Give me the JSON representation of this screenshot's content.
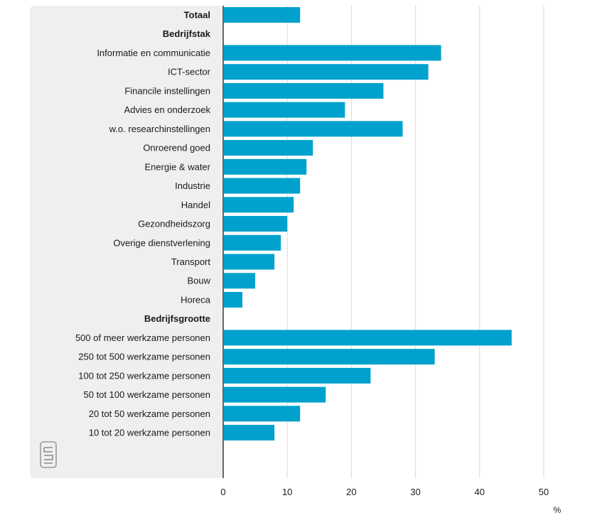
{
  "chart_data": {
    "type": "bar",
    "orientation": "horizontal",
    "categories": [
      "Totaal",
      "Bedrijfstak",
      "Informatie en communicatie",
      "ICT-sector",
      "Financile instellingen",
      "Advies en onderzoek",
      "w.o. researchinstellingen",
      "Onroerend goed",
      "Energie & water",
      "Industrie",
      "Handel",
      "Gezondheidszorg",
      "Overige dienstverlening",
      "Transport",
      "Bouw",
      "Horeca",
      "Bedrijfsgrootte",
      "500 of meer werkzame personen",
      "250 tot 500 werkzame personen",
      "100 tot 250 werkzame personen",
      "50 tot 100 werkzame personen",
      "20 tot 50 werkzame personen",
      "10 tot 20 werkzame personen"
    ],
    "values": [
      12,
      null,
      34,
      32,
      25,
      19,
      28,
      14,
      13,
      12,
      11,
      10,
      9,
      8,
      5,
      3,
      null,
      45,
      33,
      23,
      16,
      12,
      8
    ],
    "bold_categories": [
      "Totaal",
      "Bedrijfstak",
      "Bedrijfsgrootte"
    ],
    "xlim": [
      0,
      50
    ],
    "xticks": [
      0,
      10,
      20,
      30,
      40,
      50
    ],
    "xlabel": "%",
    "grid": "vertical",
    "bar_color": "#00a1cd",
    "panel_color": "#efefef",
    "axis_color": "#666666",
    "gridline_color": "#d8d8d8"
  },
  "logo": {
    "name": "cbs-logo-icon",
    "text": "cbs"
  }
}
